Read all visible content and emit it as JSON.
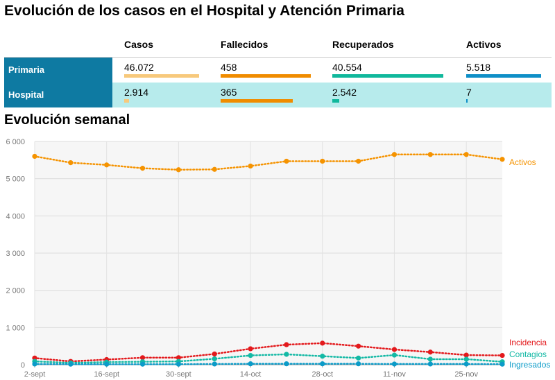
{
  "title": "Evolución de los casos en el Hospital y Atención Primaria",
  "subtitle": "Evolución semanal",
  "summary": {
    "columns": [
      "Casos",
      "Fallecidos",
      "Recuperados",
      "Activos"
    ],
    "colors": [
      "#f7c97c",
      "#f08c00",
      "#10b89c",
      "#0e8fc7"
    ],
    "rows": [
      {
        "label": "Primaria",
        "values": [
          "46.072",
          "458",
          "40.554",
          "5.518"
        ],
        "numbers": [
          46072,
          458,
          40554,
          5518
        ]
      },
      {
        "label": "Hospital",
        "values": [
          "2.914",
          "365",
          "2.542",
          "7"
        ],
        "numbers": [
          2914,
          365,
          2542,
          7
        ]
      }
    ]
  },
  "chart_data": {
    "type": "line",
    "x": [
      "2-sept",
      "9-sept",
      "16-sept",
      "23-sept",
      "30-sept",
      "7-oct",
      "14-oct",
      "21-oct",
      "28-oct",
      "4-nov",
      "11-nov",
      "18-nov",
      "25-nov",
      "2-dic"
    ],
    "x_tick_labels": [
      "2-sept",
      "16-sept",
      "30-sept",
      "14-oct",
      "28-oct",
      "11-nov",
      "25-nov"
    ],
    "ylim": [
      0,
      6000
    ],
    "y_ticks": [
      0,
      1000,
      2000,
      3000,
      4000,
      5000,
      6000
    ],
    "y_tick_labels": [
      "0",
      "1 000",
      "2 000",
      "3 000",
      "4 000",
      "5 000",
      "6 000"
    ],
    "grid": true,
    "legend": "labels at line ends",
    "series": [
      {
        "name": "Activos",
        "color": "#f59300",
        "values": [
          5600,
          5430,
          5370,
          5280,
          5240,
          5250,
          5340,
          5470,
          5470,
          5470,
          5650,
          5650,
          5650,
          5520
        ]
      },
      {
        "name": "Incidencia",
        "color": "#e3191c",
        "values": [
          180,
          90,
          140,
          190,
          190,
          290,
          430,
          540,
          580,
          500,
          410,
          340,
          260,
          250
        ]
      },
      {
        "name": "Contagios",
        "color": "#13b9a5",
        "values": [
          90,
          50,
          70,
          80,
          90,
          160,
          250,
          280,
          230,
          180,
          260,
          150,
          150,
          80
        ]
      },
      {
        "name": "Ingresados",
        "color": "#0b9bc8",
        "values": [
          20,
          15,
          15,
          15,
          15,
          20,
          25,
          25,
          25,
          25,
          20,
          20,
          20,
          15
        ]
      }
    ]
  }
}
